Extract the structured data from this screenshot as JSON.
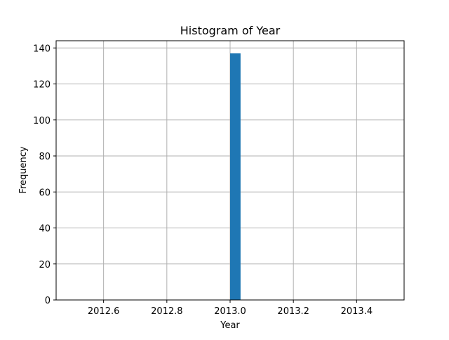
{
  "chart_data": {
    "type": "histogram",
    "title": "Histogram of Year",
    "xlabel": "Year",
    "ylabel": "Frequency",
    "xlim": [
      2012.45,
      2013.55
    ],
    "ylim": [
      0,
      144
    ],
    "x_ticks": [
      2012.6,
      2012.8,
      2013.0,
      2013.2,
      2013.4
    ],
    "x_tick_labels": [
      "2012.6",
      "2012.8",
      "2013.0",
      "2013.2",
      "2013.4"
    ],
    "y_ticks": [
      0,
      20,
      40,
      60,
      80,
      100,
      120,
      140
    ],
    "y_tick_labels": [
      "0",
      "20",
      "40",
      "60",
      "80",
      "100",
      "120",
      "140"
    ],
    "bars": [
      {
        "bin_start": 2013.0,
        "bin_end": 2013.033,
        "count": 137
      }
    ],
    "bar_color": "#1f77b4",
    "grid": true
  }
}
